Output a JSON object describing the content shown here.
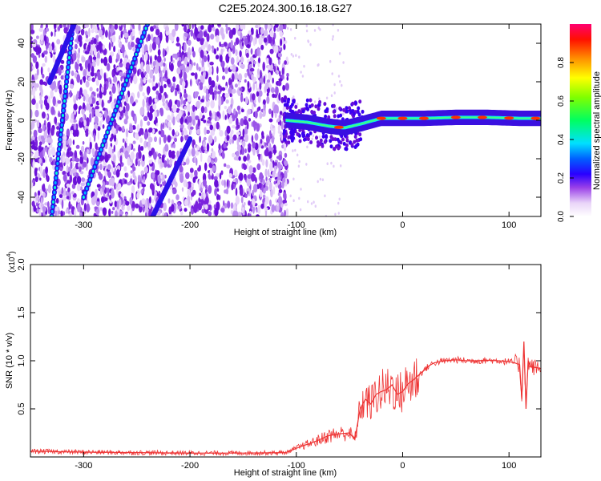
{
  "title": "C2E5.2024.300.16.18.G27",
  "chart_data": [
    {
      "type": "heatmap",
      "xlabel": "Height of straight line (km)",
      "ylabel": "Frequency (Hz)",
      "xlim": [
        -350,
        130
      ],
      "ylim": [
        -50,
        50
      ],
      "x_ticks": [
        -300,
        -200,
        -100,
        0,
        100
      ],
      "y_ticks": [
        -40,
        -20,
        0,
        20,
        40
      ],
      "colorbar": {
        "label": "Normalized spectral amplitude",
        "range": [
          0.0,
          1.0
        ],
        "ticks": [
          0.0,
          0.2,
          0.4,
          0.6,
          0.8
        ],
        "tick_labels": [
          "0.0",
          "0.2",
          "0.4",
          "0.6",
          "0.8"
        ],
        "colors": [
          "#ffffff",
          "#d7b4f0",
          "#7a1fdc",
          "#0000ff",
          "#00ffff",
          "#00ff00",
          "#ffff00",
          "#ff8000",
          "#ff0000",
          "#ff0080"
        ]
      },
      "features": {
        "noise_region_x": [
          -350,
          -108
        ],
        "signal_line": {
          "x": [
            -110,
            -90,
            -70,
            -55,
            -40,
            -20,
            0,
            20,
            50,
            80,
            110,
            130
          ],
          "frequency": [
            0,
            -1,
            -3,
            -4,
            -2,
            1,
            1,
            1,
            1.5,
            1.5,
            1,
            1
          ]
        },
        "diagonal_tracks": [
          {
            "x": [
              -330,
              -310
            ],
            "frequency": [
              -50,
              50
            ]
          },
          {
            "x": [
              -332,
              -305
            ],
            "frequency": [
              20,
              55
            ]
          },
          {
            "x": [
              -300,
              -240
            ],
            "frequency": [
              -40,
              50
            ]
          },
          {
            "x": [
              -235,
              -200
            ],
            "frequency": [
              -50,
              -10
            ]
          }
        ]
      }
    },
    {
      "type": "line",
      "xlabel": "Height of straight line (km)",
      "ylabel": "SNR (10 * v/v)",
      "y_multiplier_label": "(x10",
      "y_multiplier_exponent": "4",
      "xlim": [
        -350,
        130
      ],
      "ylim": [
        0,
        20000
      ],
      "x_ticks": [
        -300,
        -200,
        -100,
        0,
        100
      ],
      "y_ticks": [
        5000,
        10000,
        15000,
        20000
      ],
      "y_tick_labels": [
        "0.5",
        "1.0",
        "1.5",
        "2.0"
      ],
      "color": "#ee3333",
      "x": [
        -350,
        -300,
        -250,
        -200,
        -150,
        -110,
        -100,
        -90,
        -80,
        -70,
        -60,
        -50,
        -45,
        -40,
        -35,
        -30,
        -25,
        -20,
        -15,
        -10,
        -5,
        0,
        5,
        10,
        15,
        20,
        25,
        30,
        35,
        40,
        50,
        60,
        70,
        80,
        90,
        100,
        105,
        110,
        112,
        114,
        116,
        118,
        120,
        125,
        130
      ],
      "y": [
        600,
        500,
        450,
        400,
        400,
        450,
        900,
        1300,
        1700,
        2200,
        2400,
        2500,
        1800,
        5000,
        6000,
        5500,
        6500,
        6800,
        7000,
        7500,
        6500,
        6800,
        7600,
        8000,
        8500,
        9000,
        9500,
        9800,
        9900,
        10000,
        10100,
        10000,
        10000,
        10050,
        10000,
        9900,
        9800,
        9600,
        6000,
        12000,
        5000,
        10000,
        9400,
        9300,
        9200
      ]
    }
  ]
}
